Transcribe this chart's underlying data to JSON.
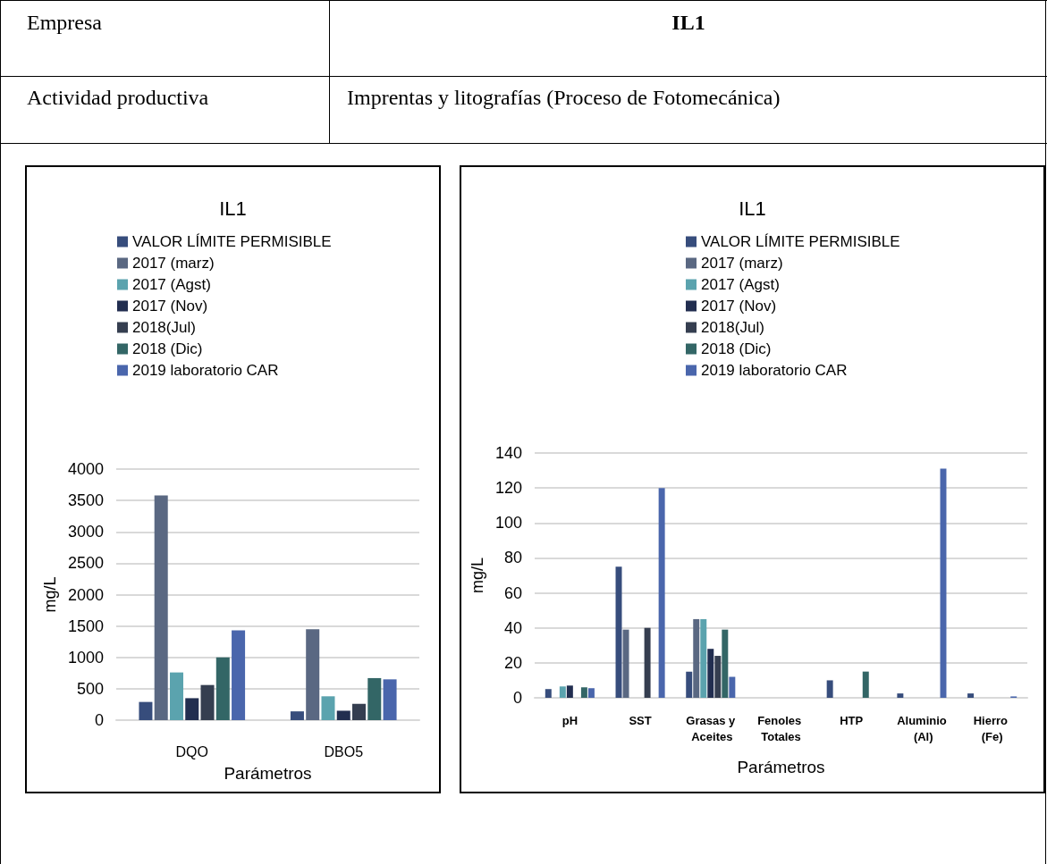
{
  "chart_data": [
    {
      "type": "other",
      "annotations": [
        "Empresa",
        "IL1",
        "Actividad productiva",
        "Imprentas y litografías (Proceso de Fotomecánica)"
      ]
    },
    {
      "type": "bar",
      "title": "IL1",
      "xlabel": "Parámetros",
      "ylabel": "mg/L",
      "categories": [
        "DQO",
        "DBO5"
      ],
      "ylim": [
        0,
        4000
      ],
      "yticks": [
        0,
        500,
        1000,
        1500,
        2000,
        2500,
        3000,
        3500,
        4000
      ],
      "grid": "y",
      "legend": "top",
      "series": [
        {
          "name": "VALOR LÍMITE PERMISIBLE",
          "color": "#374d7c",
          "values": [
            290,
            140
          ]
        },
        {
          "name": "2017 (marz)",
          "color": "#5a6882",
          "values": [
            3580,
            1450
          ]
        },
        {
          "name": "2017 (Agst)",
          "color": "#5ba3ae",
          "values": [
            760,
            380
          ]
        },
        {
          "name": "2017 (Nov)",
          "color": "#222e50",
          "values": [
            350,
            150
          ]
        },
        {
          "name": "2018(Jul)",
          "color": "#353e50",
          "values": [
            560,
            260
          ]
        },
        {
          "name": "2018 (Dic)",
          "color": "#336666",
          "values": [
            1000,
            670
          ]
        },
        {
          "name": "2019 laboratorio CAR",
          "color": "#4a66ac",
          "values": [
            1430,
            650
          ]
        }
      ]
    },
    {
      "type": "bar",
      "title": "IL1",
      "xlabel": "Parámetros",
      "ylabel": "mg/L",
      "categories": [
        "pH",
        "SST",
        "Grasas y Aceites",
        "Fenoles Totales",
        "HTP",
        "Aluminio (Al)",
        "Hierro (Fe)"
      ],
      "ylim": [
        0,
        140
      ],
      "yticks": [
        0,
        20,
        40,
        60,
        80,
        100,
        120,
        140
      ],
      "grid": "y",
      "legend": "top",
      "series": [
        {
          "name": "VALOR LÍMITE PERMISIBLE",
          "color": "#374d7c",
          "values": [
            5,
            75,
            15,
            null,
            10,
            2.5,
            2.5
          ]
        },
        {
          "name": "2017 (marz)",
          "color": "#5a6882",
          "values": [
            null,
            39,
            45,
            null,
            null,
            null,
            null
          ]
        },
        {
          "name": "2017 (Agst)",
          "color": "#5ba3ae",
          "values": [
            6.5,
            null,
            45,
            null,
            null,
            null,
            null
          ]
        },
        {
          "name": "2017 (Nov)",
          "color": "#222e50",
          "values": [
            7,
            null,
            28,
            null,
            null,
            null,
            null
          ]
        },
        {
          "name": "2018(Jul)",
          "color": "#353e50",
          "values": [
            null,
            40,
            24,
            null,
            null,
            null,
            null
          ]
        },
        {
          "name": "2018 (Dic)",
          "color": "#336666",
          "values": [
            6,
            null,
            39,
            null,
            15,
            null,
            null
          ]
        },
        {
          "name": "2019 laboratorio CAR",
          "color": "#4a66ac",
          "values": [
            5.5,
            120,
            12,
            null,
            null,
            131,
            0.8
          ]
        }
      ]
    }
  ]
}
